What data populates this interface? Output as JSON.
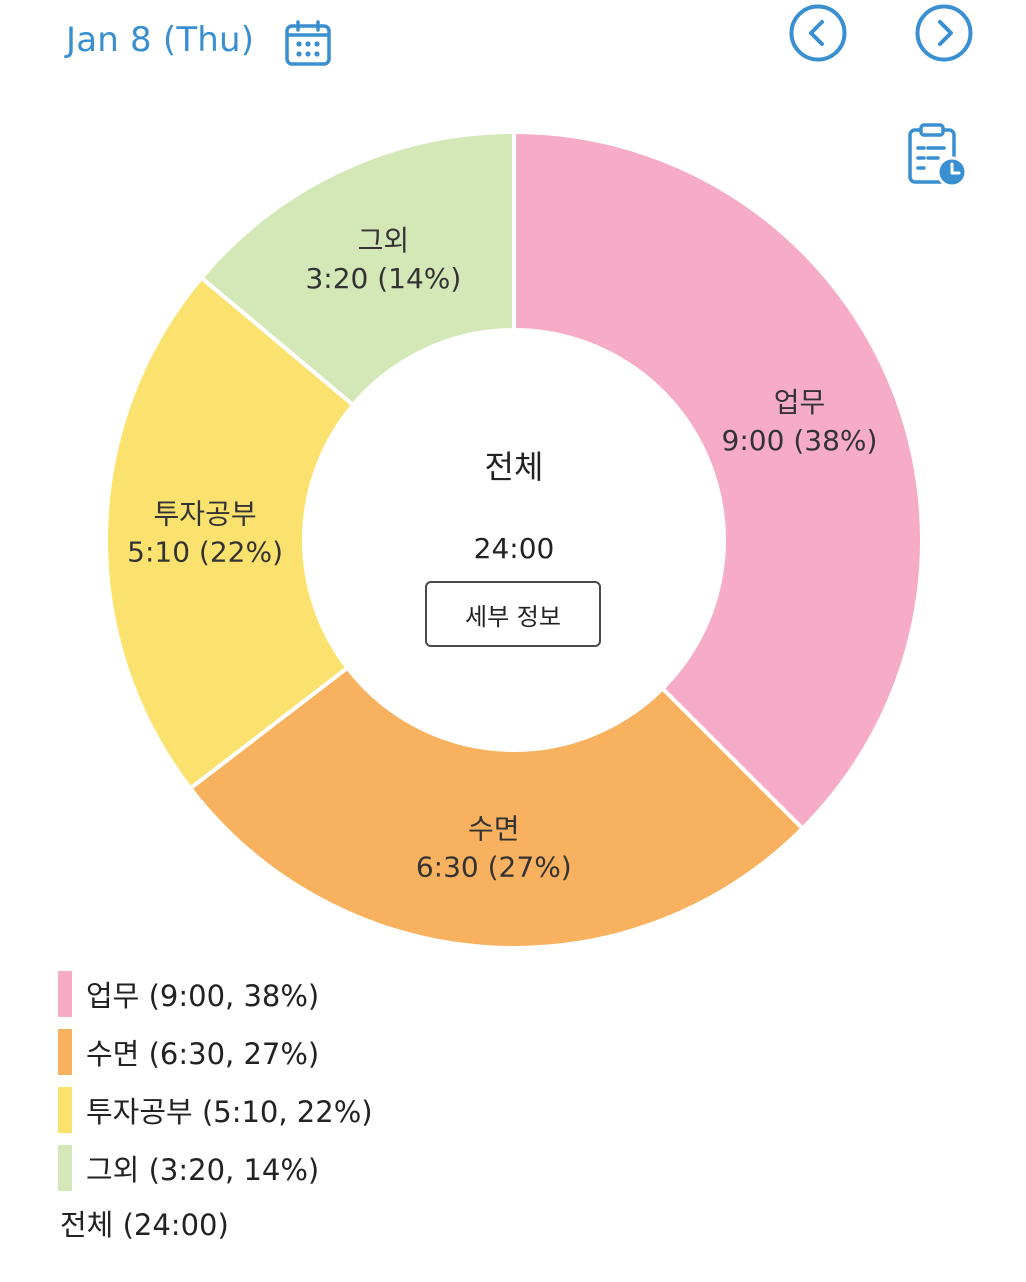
{
  "header": {
    "date": "Jan 8 (Thu)",
    "accent_color": "#3a8fd0",
    "icons": {
      "calendar": "calendar-icon",
      "prev": "chevron-left-icon",
      "next": "chevron-right-icon",
      "clipboard": "clipboard-clock-icon"
    }
  },
  "chart_data": {
    "type": "pie",
    "donut": true,
    "center": {
      "title": "전체",
      "total": "24:00",
      "button_label": "세부 정보"
    },
    "slices": [
      {
        "name": "업무",
        "time": "9:00",
        "percent": 38,
        "value": 9.0,
        "color": "#f6abc7"
      },
      {
        "name": "수면",
        "time": "6:30",
        "percent": 27,
        "value": 6.5,
        "color": "#f8b15e"
      },
      {
        "name": "투자공부",
        "time": "5:10",
        "percent": 22,
        "value": 5.1667,
        "color": "#fbe26f"
      },
      {
        "name": "그외",
        "time": "3:20",
        "percent": 14,
        "value": 3.3333,
        "color": "#d4e8b7"
      }
    ],
    "slice_labels": [
      {
        "name": "업무",
        "detail": "9:00 (38%)"
      },
      {
        "name": "수면",
        "detail": "6:30 (27%)"
      },
      {
        "name": "투자공부",
        "detail": "5:10 (22%)"
      },
      {
        "name": "그외",
        "detail": "3:20 (14%)"
      }
    ]
  },
  "legend": {
    "items": [
      {
        "label": "업무 (9:00, 38%)",
        "color": "#f6abc7"
      },
      {
        "label": "수면 (6:30, 27%)",
        "color": "#f8b15e"
      },
      {
        "label": "투자공부 (5:10, 22%)",
        "color": "#fbe26f"
      },
      {
        "label": "그외 (3:20, 14%)",
        "color": "#d4e8b7"
      }
    ],
    "total": "전체 (24:00)"
  }
}
